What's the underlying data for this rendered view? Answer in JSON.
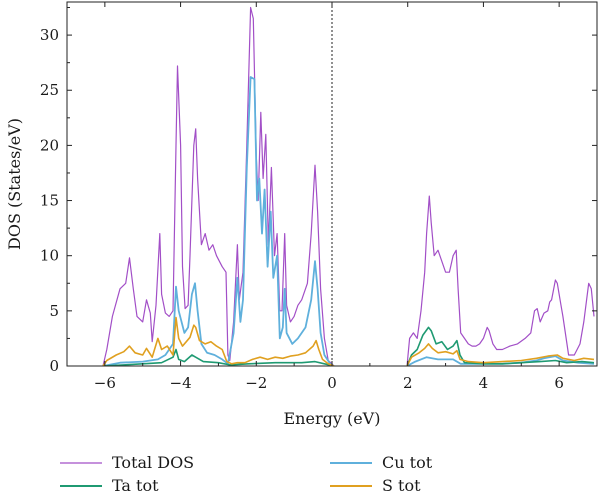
{
  "chart_data": {
    "type": "line",
    "xlabel": "Energy (eV)",
    "ylabel": "DOS (States/eV)",
    "xlim": [
      -7.0,
      7.0
    ],
    "ylim": [
      0,
      33
    ],
    "xticks": [
      -6,
      -4,
      -2,
      0,
      2,
      4,
      6
    ],
    "yticks": [
      0,
      5,
      10,
      15,
      20,
      25,
      30
    ],
    "fermi_line_x": 0,
    "legend_position": "bottom",
    "series": [
      {
        "name": "Total DOS",
        "color": "#a24fc7",
        "points": [
          [
            -6.05,
            0
          ],
          [
            -5.95,
            1.5
          ],
          [
            -5.8,
            4.5
          ],
          [
            -5.6,
            7
          ],
          [
            -5.45,
            7.5
          ],
          [
            -5.35,
            9.8
          ],
          [
            -5.25,
            7
          ],
          [
            -5.15,
            4.5
          ],
          [
            -5.0,
            4
          ],
          [
            -4.9,
            6
          ],
          [
            -4.8,
            4.8
          ],
          [
            -4.75,
            2.2
          ],
          [
            -4.65,
            5.5
          ],
          [
            -4.55,
            12
          ],
          [
            -4.5,
            6.5
          ],
          [
            -4.4,
            4.8
          ],
          [
            -4.3,
            4.5
          ],
          [
            -4.2,
            5
          ],
          [
            -4.12,
            20
          ],
          [
            -4.08,
            27.2
          ],
          [
            -4.0,
            20
          ],
          [
            -3.95,
            9
          ],
          [
            -3.88,
            5.2
          ],
          [
            -3.8,
            5.5
          ],
          [
            -3.75,
            10
          ],
          [
            -3.65,
            20
          ],
          [
            -3.6,
            21.5
          ],
          [
            -3.55,
            17
          ],
          [
            -3.45,
            11
          ],
          [
            -3.35,
            12
          ],
          [
            -3.25,
            10.5
          ],
          [
            -3.15,
            11
          ],
          [
            -3.05,
            10
          ],
          [
            -2.9,
            9
          ],
          [
            -2.8,
            8.5
          ],
          [
            -2.75,
            1
          ],
          [
            -2.7,
            0.5
          ],
          [
            -2.6,
            4
          ],
          [
            -2.5,
            11
          ],
          [
            -2.45,
            6
          ],
          [
            -2.35,
            8.5
          ],
          [
            -2.25,
            20
          ],
          [
            -2.15,
            32.5
          ],
          [
            -2.08,
            31.5
          ],
          [
            -2.0,
            19
          ],
          [
            -1.95,
            15
          ],
          [
            -1.88,
            23
          ],
          [
            -1.82,
            17
          ],
          [
            -1.75,
            21
          ],
          [
            -1.68,
            11
          ],
          [
            -1.6,
            18
          ],
          [
            -1.52,
            10
          ],
          [
            -1.45,
            12
          ],
          [
            -1.38,
            5
          ],
          [
            -1.32,
            5
          ],
          [
            -1.25,
            12
          ],
          [
            -1.2,
            5.5
          ],
          [
            -1.1,
            4
          ],
          [
            -1.0,
            4.5
          ],
          [
            -0.9,
            5.5
          ],
          [
            -0.8,
            6
          ],
          [
            -0.65,
            7.5
          ],
          [
            -0.55,
            12
          ],
          [
            -0.45,
            18.2
          ],
          [
            -0.38,
            14
          ],
          [
            -0.3,
            7
          ],
          [
            -0.2,
            2.5
          ],
          [
            -0.1,
            0.5
          ],
          [
            0.0,
            0.2
          ],
          [
            0.05,
            0
          ]
        ],
        "points2": [
          [
            1.98,
            0
          ],
          [
            2.05,
            2.5
          ],
          [
            2.15,
            3
          ],
          [
            2.25,
            2.5
          ],
          [
            2.35,
            5
          ],
          [
            2.45,
            8.5
          ],
          [
            2.5,
            12
          ],
          [
            2.57,
            15.4
          ],
          [
            2.62,
            13
          ],
          [
            2.7,
            10
          ],
          [
            2.8,
            10.5
          ],
          [
            2.9,
            9.5
          ],
          [
            3.0,
            8.5
          ],
          [
            3.1,
            8.5
          ],
          [
            3.2,
            10
          ],
          [
            3.28,
            10.5
          ],
          [
            3.33,
            7
          ],
          [
            3.4,
            3
          ],
          [
            3.5,
            2.5
          ],
          [
            3.6,
            2
          ],
          [
            3.7,
            1.8
          ],
          [
            3.8,
            1.8
          ],
          [
            3.9,
            2
          ],
          [
            4.0,
            2.5
          ],
          [
            4.1,
            3.5
          ],
          [
            4.15,
            3.2
          ],
          [
            4.25,
            2
          ],
          [
            4.35,
            1.5
          ],
          [
            4.5,
            1.5
          ],
          [
            4.7,
            1.8
          ],
          [
            4.9,
            2
          ],
          [
            5.1,
            2.5
          ],
          [
            5.25,
            3
          ],
          [
            5.35,
            5
          ],
          [
            5.42,
            5.2
          ],
          [
            5.5,
            4
          ],
          [
            5.6,
            4.8
          ],
          [
            5.7,
            5
          ],
          [
            5.75,
            5.8
          ],
          [
            5.8,
            6
          ],
          [
            5.9,
            7.8
          ],
          [
            5.95,
            7.5
          ],
          [
            6.05,
            5.5
          ],
          [
            6.1,
            4.5
          ],
          [
            6.25,
            1
          ],
          [
            6.4,
            1
          ],
          [
            6.55,
            2
          ],
          [
            6.65,
            4
          ],
          [
            6.78,
            7.5
          ],
          [
            6.85,
            7
          ],
          [
            6.92,
            4.5
          ]
        ]
      },
      {
        "name": "Cu tot",
        "color": "#5fb0dc",
        "points": [
          [
            -6.05,
            0
          ],
          [
            -5.6,
            0.3
          ],
          [
            -5.0,
            0.4
          ],
          [
            -4.6,
            0.6
          ],
          [
            -4.4,
            1
          ],
          [
            -4.2,
            2
          ],
          [
            -4.12,
            7.2
          ],
          [
            -4.05,
            5
          ],
          [
            -3.9,
            3
          ],
          [
            -3.8,
            3.5
          ],
          [
            -3.7,
            6.5
          ],
          [
            -3.62,
            7.5
          ],
          [
            -3.55,
            5
          ],
          [
            -3.45,
            2
          ],
          [
            -3.3,
            1.2
          ],
          [
            -3.1,
            1
          ],
          [
            -2.9,
            0.6
          ],
          [
            -2.75,
            0.2
          ],
          [
            -2.6,
            3
          ],
          [
            -2.5,
            8
          ],
          [
            -2.42,
            4
          ],
          [
            -2.35,
            6
          ],
          [
            -2.25,
            18
          ],
          [
            -2.15,
            26.2
          ],
          [
            -2.05,
            26
          ],
          [
            -1.98,
            15
          ],
          [
            -1.92,
            17
          ],
          [
            -1.85,
            12
          ],
          [
            -1.78,
            16
          ],
          [
            -1.7,
            9
          ],
          [
            -1.62,
            14
          ],
          [
            -1.55,
            8
          ],
          [
            -1.45,
            10
          ],
          [
            -1.38,
            2.5
          ],
          [
            -1.3,
            3.5
          ],
          [
            -1.25,
            7
          ],
          [
            -1.2,
            3
          ],
          [
            -1.05,
            2
          ],
          [
            -0.9,
            2.5
          ],
          [
            -0.7,
            3.5
          ],
          [
            -0.55,
            6
          ],
          [
            -0.45,
            9.5
          ],
          [
            -0.38,
            7
          ],
          [
            -0.3,
            3
          ],
          [
            -0.2,
            1
          ],
          [
            -0.05,
            0.2
          ],
          [
            0.05,
            0
          ]
        ],
        "points2": [
          [
            1.98,
            0
          ],
          [
            2.2,
            0.4
          ],
          [
            2.5,
            0.8
          ],
          [
            2.8,
            0.6
          ],
          [
            3.2,
            0.6
          ],
          [
            3.4,
            0.2
          ],
          [
            4.0,
            0.2
          ],
          [
            4.5,
            0.2
          ],
          [
            5.0,
            0.3
          ],
          [
            5.4,
            0.5
          ],
          [
            5.6,
            0.7
          ],
          [
            5.9,
            0.9
          ],
          [
            6.1,
            0.5
          ],
          [
            6.5,
            0.3
          ],
          [
            6.92,
            0.2
          ]
        ]
      },
      {
        "name": "Ta tot",
        "color": "#1f9a72",
        "points": [
          [
            -6.05,
            0
          ],
          [
            -5.0,
            0.2
          ],
          [
            -4.5,
            0.3
          ],
          [
            -4.2,
            0.8
          ],
          [
            -4.12,
            1.5
          ],
          [
            -4.05,
            0.6
          ],
          [
            -3.9,
            0.4
          ],
          [
            -3.7,
            1
          ],
          [
            -3.6,
            0.8
          ],
          [
            -3.4,
            0.4
          ],
          [
            -3.0,
            0.3
          ],
          [
            -2.7,
            0.1
          ],
          [
            -2.2,
            0.2
          ],
          [
            -1.5,
            0.3
          ],
          [
            -0.8,
            0.3
          ],
          [
            -0.45,
            0.4
          ],
          [
            -0.2,
            0.2
          ],
          [
            0.05,
            0
          ]
        ],
        "points2": [
          [
            1.98,
            0
          ],
          [
            2.1,
            1
          ],
          [
            2.25,
            1.5
          ],
          [
            2.4,
            2.8
          ],
          [
            2.55,
            3.5
          ],
          [
            2.62,
            3.2
          ],
          [
            2.75,
            2
          ],
          [
            2.9,
            2.2
          ],
          [
            3.05,
            1.5
          ],
          [
            3.2,
            1.8
          ],
          [
            3.3,
            2.3
          ],
          [
            3.38,
            1
          ],
          [
            3.5,
            0.3
          ],
          [
            4.0,
            0.2
          ],
          [
            4.5,
            0.2
          ],
          [
            5.0,
            0.3
          ],
          [
            5.5,
            0.4
          ],
          [
            5.9,
            0.5
          ],
          [
            6.2,
            0.3
          ],
          [
            6.6,
            0.4
          ],
          [
            6.92,
            0.3
          ]
        ]
      },
      {
        "name": "S tot",
        "color": "#e0a020",
        "points": [
          [
            -6.05,
            0
          ],
          [
            -5.95,
            0.5
          ],
          [
            -5.7,
            1
          ],
          [
            -5.5,
            1.3
          ],
          [
            -5.35,
            1.8
          ],
          [
            -5.2,
            1.2
          ],
          [
            -5.0,
            1
          ],
          [
            -4.9,
            1.6
          ],
          [
            -4.75,
            0.8
          ],
          [
            -4.6,
            2.5
          ],
          [
            -4.5,
            1.5
          ],
          [
            -4.35,
            1.8
          ],
          [
            -4.2,
            1
          ],
          [
            -4.12,
            4.4
          ],
          [
            -4.05,
            2.5
          ],
          [
            -3.95,
            1.8
          ],
          [
            -3.85,
            2.2
          ],
          [
            -3.75,
            2.6
          ],
          [
            -3.65,
            3.7
          ],
          [
            -3.6,
            3.5
          ],
          [
            -3.5,
            2.3
          ],
          [
            -3.35,
            2
          ],
          [
            -3.2,
            2.2
          ],
          [
            -3.05,
            1.8
          ],
          [
            -2.9,
            1.5
          ],
          [
            -2.78,
            0.4
          ],
          [
            -2.65,
            0.2
          ],
          [
            -2.5,
            0.3
          ],
          [
            -2.3,
            0.3
          ],
          [
            -2.1,
            0.6
          ],
          [
            -1.9,
            0.8
          ],
          [
            -1.7,
            0.6
          ],
          [
            -1.5,
            0.8
          ],
          [
            -1.3,
            0.7
          ],
          [
            -1.1,
            0.9
          ],
          [
            -0.9,
            1
          ],
          [
            -0.7,
            1.2
          ],
          [
            -0.5,
            1.8
          ],
          [
            -0.42,
            2.3
          ],
          [
            -0.35,
            1.5
          ],
          [
            -0.25,
            0.6
          ],
          [
            -0.1,
            0.2
          ],
          [
            0.05,
            0
          ]
        ],
        "points2": [
          [
            1.98,
            0
          ],
          [
            2.1,
            0.8
          ],
          [
            2.3,
            1.2
          ],
          [
            2.45,
            1.6
          ],
          [
            2.55,
            2
          ],
          [
            2.65,
            1.6
          ],
          [
            2.8,
            1.2
          ],
          [
            3.0,
            1.3
          ],
          [
            3.2,
            1.1
          ],
          [
            3.3,
            1.4
          ],
          [
            3.38,
            0.6
          ],
          [
            3.6,
            0.4
          ],
          [
            4.0,
            0.3
          ],
          [
            4.5,
            0.4
          ],
          [
            5.0,
            0.5
          ],
          [
            5.4,
            0.7
          ],
          [
            5.7,
            0.9
          ],
          [
            5.95,
            1
          ],
          [
            6.1,
            0.7
          ],
          [
            6.4,
            0.5
          ],
          [
            6.65,
            0.7
          ],
          [
            6.92,
            0.6
          ]
        ]
      }
    ]
  }
}
